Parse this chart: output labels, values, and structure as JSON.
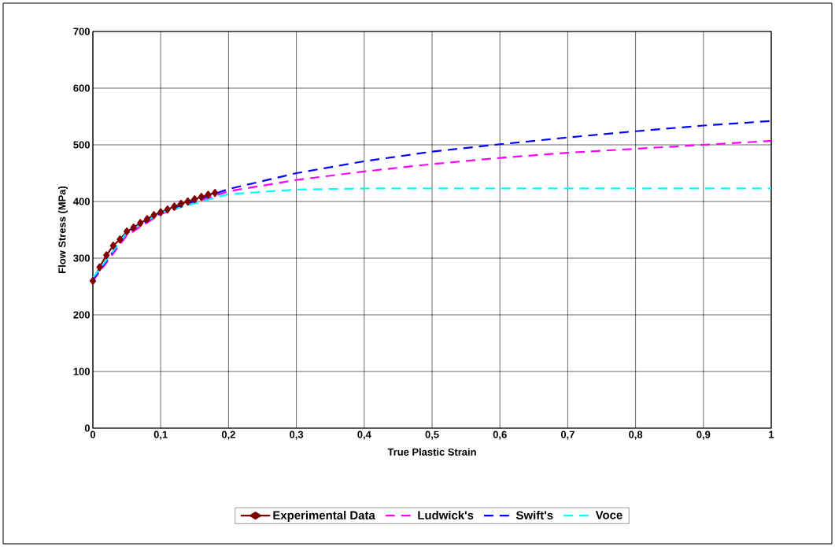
{
  "chart_data": {
    "type": "line",
    "xlabel": "True Plastic Strain",
    "ylabel": "Flow Stress (MPa)",
    "xlim": [
      0,
      1
    ],
    "ylim": [
      0,
      700
    ],
    "xticks": [
      {
        "value": 0,
        "label": "0"
      },
      {
        "value": 0.1,
        "label": "0,1"
      },
      {
        "value": 0.2,
        "label": "0,2"
      },
      {
        "value": 0.3,
        "label": "0,3"
      },
      {
        "value": 0.4,
        "label": "0,4"
      },
      {
        "value": 0.5,
        "label": "0,5"
      },
      {
        "value": 0.6,
        "label": "0,6"
      },
      {
        "value": 0.7,
        "label": "0,7"
      },
      {
        "value": 0.8,
        "label": "0,8"
      },
      {
        "value": 0.9,
        "label": "0,9"
      },
      {
        "value": 1,
        "label": "1"
      }
    ],
    "yticks": [
      0,
      100,
      200,
      300,
      400,
      500,
      600,
      700
    ],
    "grid": true,
    "legend": "bottom",
    "series": [
      {
        "name": "Experimental Data",
        "color": "#800000",
        "marker": "diamond",
        "line_style": "solid",
        "x": [
          0,
          0.01,
          0.02,
          0.03,
          0.04,
          0.05,
          0.06,
          0.07,
          0.08,
          0.09,
          0.1,
          0.11,
          0.12,
          0.13,
          0.14,
          0.15,
          0.16,
          0.17,
          0.18
        ],
        "values": [
          260,
          284,
          305,
          322,
          333,
          347,
          354,
          362,
          369,
          376,
          381,
          386,
          391,
          396,
          400,
          404,
          408,
          412,
          415
        ]
      },
      {
        "name": "Ludwick's",
        "color": "#ff00ff",
        "marker": "none",
        "line_style": "dashed",
        "x": [
          0,
          0.05,
          0.1,
          0.2,
          0.3,
          0.4,
          0.5,
          0.6,
          0.7,
          0.8,
          0.9,
          1
        ],
        "values": [
          260,
          340,
          378,
          418,
          438,
          453,
          466,
          477,
          486,
          493,
          500,
          507
        ]
      },
      {
        "name": "Swift's",
        "color": "#0000ff",
        "marker": "none",
        "line_style": "dashed",
        "x": [
          0,
          0.05,
          0.1,
          0.2,
          0.3,
          0.4,
          0.5,
          0.6,
          0.7,
          0.8,
          0.9,
          1
        ],
        "values": [
          262,
          345,
          380,
          422,
          450,
          471,
          488,
          501,
          513,
          524,
          534,
          542
        ]
      },
      {
        "name": "Voce",
        "color": "#00ffff",
        "marker": "none",
        "line_style": "dashed",
        "x": [
          0,
          0.05,
          0.1,
          0.2,
          0.3,
          0.4,
          0.5,
          0.6,
          0.7,
          0.8,
          0.9,
          1
        ],
        "values": [
          265,
          345,
          380,
          413,
          421,
          423,
          423,
          423,
          423,
          423,
          423,
          423
        ]
      }
    ]
  }
}
